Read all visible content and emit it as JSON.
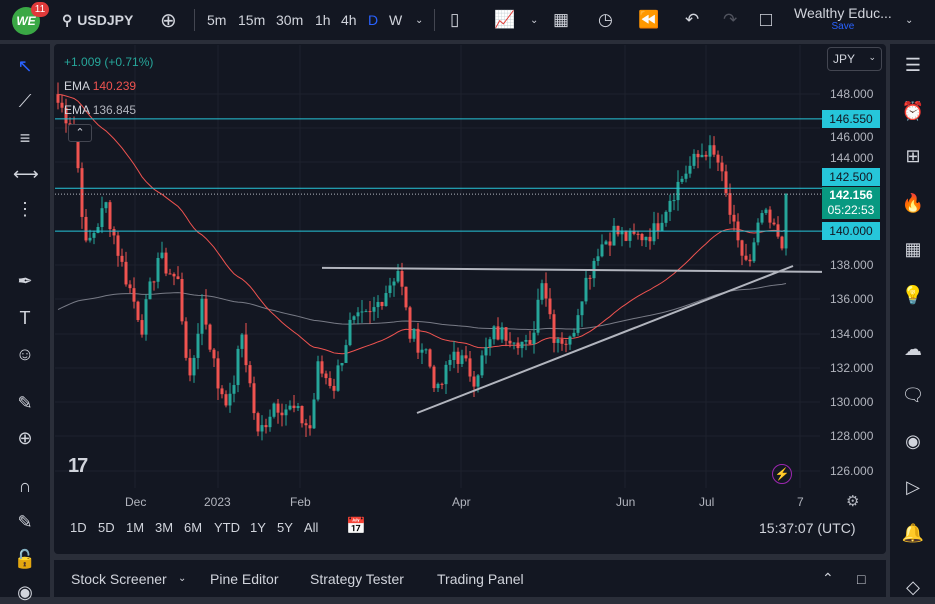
{
  "header": {
    "notifications": "11",
    "logo_text": "WE",
    "symbol": "USDJPY",
    "timeframes": [
      "5m",
      "15m",
      "30m",
      "1h",
      "4h",
      "D",
      "W"
    ],
    "active_timeframe": "D",
    "account": "Wealthy Educ...",
    "save": "Save"
  },
  "legend": {
    "change": "+1.009 (+0.71%)",
    "ema1_label": "EMA",
    "ema1_value": "140.239",
    "ema2_label": "EMA",
    "ema2_value": "136.845"
  },
  "price_axis": {
    "currency": "JPY",
    "ticks": [
      "148.000",
      "146.000",
      "144.000",
      "138.000",
      "136.000",
      "134.000",
      "132.000",
      "130.000",
      "128.000",
      "126.000"
    ],
    "labels": {
      "l1": "146.550",
      "l2": "142.500",
      "l3": "140.000"
    },
    "last_price": "142.156",
    "countdown": "05:22:53"
  },
  "time_axis": [
    "Dec",
    "2023",
    "Feb",
    "Apr",
    "Jun",
    "Jul",
    "7"
  ],
  "range_buttons": [
    "1D",
    "5D",
    "1M",
    "3M",
    "6M",
    "YTD",
    "1Y",
    "5Y",
    "All"
  ],
  "clock": "15:37:07 (UTC)",
  "bottom_tabs": [
    "Stock Screener",
    "Pine Editor",
    "Strategy Tester",
    "Trading Panel"
  ],
  "colors": {
    "up": "#26a69a",
    "down": "#ef5350",
    "level": "#26c6da",
    "ema_fast": "#ef5350",
    "ema_slow": "#787b86"
  },
  "chart_data": {
    "type": "candlestick",
    "symbol": "USDJPY",
    "interval": "D",
    "ylim": [
      125.5,
      149
    ],
    "levels": [
      146.55,
      142.5,
      140.0
    ],
    "support": 137.8,
    "path": [
      [
        0,
        147.5
      ],
      [
        4,
        146
      ],
      [
        7,
        139
      ],
      [
        12,
        141.5
      ],
      [
        16,
        138
      ],
      [
        21,
        134.5
      ],
      [
        25,
        138.5
      ],
      [
        30,
        137
      ],
      [
        33,
        131
      ],
      [
        36,
        136
      ],
      [
        40,
        131
      ],
      [
        43,
        130
      ],
      [
        46,
        134
      ],
      [
        50,
        128
      ],
      [
        54,
        130
      ],
      [
        59,
        129.5
      ],
      [
        63,
        128.5
      ],
      [
        65,
        132
      ],
      [
        69,
        131
      ],
      [
        73,
        134.5
      ],
      [
        78,
        135
      ],
      [
        83,
        137
      ],
      [
        85,
        137.8
      ],
      [
        88,
        134
      ],
      [
        92,
        133
      ],
      [
        95,
        130.5
      ],
      [
        99,
        133
      ],
      [
        104,
        131.5
      ],
      [
        109,
        134
      ],
      [
        114,
        134
      ],
      [
        118,
        133
      ],
      [
        121,
        137.5
      ],
      [
        124,
        134
      ],
      [
        128,
        133.5
      ],
      [
        131,
        136.5
      ],
      [
        135,
        139
      ],
      [
        139,
        140
      ],
      [
        143,
        139.5
      ],
      [
        149,
        140
      ],
      [
        153,
        142
      ],
      [
        157,
        143.5
      ],
      [
        162,
        144.8
      ],
      [
        165,
        144
      ],
      [
        168,
        141
      ],
      [
        170,
        139
      ],
      [
        173,
        138
      ],
      [
        176,
        141
      ],
      [
        179,
        140
      ],
      [
        181,
        139.5
      ],
      [
        182,
        142.16
      ]
    ]
  }
}
